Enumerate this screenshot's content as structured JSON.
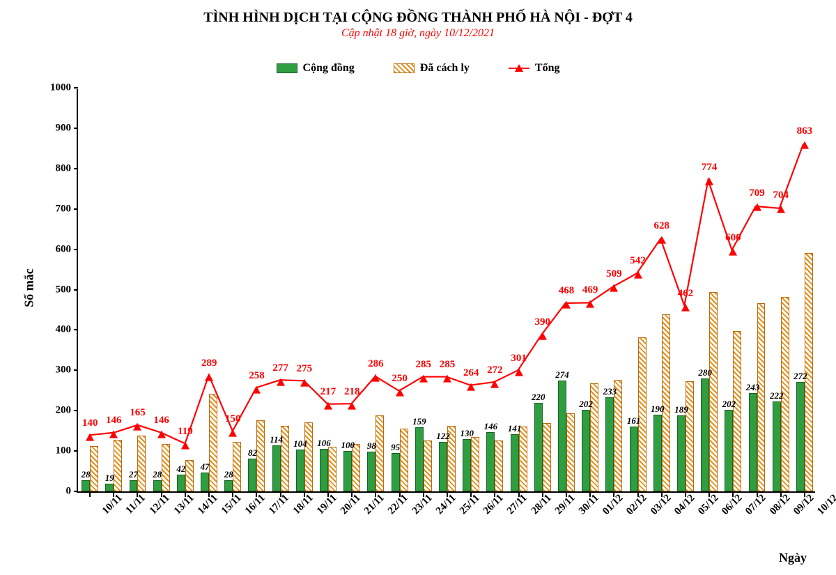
{
  "title": "TÌNH HÌNH DỊCH TẠI CỘNG ĐỒNG THÀNH PHỐ HÀ NỘI - ĐỢT 4",
  "subtitle": "Cập nhật 18 giờ, ngày 10/12/2021",
  "title_fontsize": 20,
  "subtitle_fontsize": 16,
  "legend": {
    "fontsize": 16,
    "items": [
      {
        "name": "cong-dong",
        "label": "Cộng đồng",
        "type": "bar-solid",
        "color": "#2e9e41",
        "border": "#1c5f27"
      },
      {
        "name": "cach-ly",
        "label": "Đã cách ly",
        "type": "bar-hatched",
        "color": "#e58e1a",
        "border": "#b86b0e",
        "hatch_background": "#ffffff"
      },
      {
        "name": "tong",
        "label": "Tổng",
        "type": "line-triangle",
        "color": "#ff0000"
      }
    ]
  },
  "axes": {
    "y_label": "Số mắc",
    "x_label": "Ngày",
    "label_fontsize": 18,
    "tick_fontsize": 15,
    "ylim": [
      0,
      1000
    ],
    "ytick_step": 100
  },
  "style": {
    "background_color": "#ffffff",
    "bar_group_width_ratio": 0.7,
    "bar_data_label_fontsize": 13,
    "bar_data_label_color": "#000000",
    "line_width": 2.2,
    "line_label_fontsize": 15,
    "line_label_color": "#ff0000",
    "marker_size": 11
  },
  "data": {
    "categories": [
      "10/11",
      "11/11",
      "12/11",
      "13/11",
      "14/11",
      "15/11",
      "16/11",
      "17/11",
      "18/11",
      "19/11",
      "20/11",
      "21/11",
      "22/11",
      "23/11",
      "24/11",
      "25/11",
      "26/11",
      "27/11",
      "28/11",
      "29/11",
      "30/11",
      "01/12",
      "02/12",
      "03/12",
      "04/12",
      "05/12",
      "06/12",
      "07/12",
      "08/12",
      "09/12",
      "10/12"
    ],
    "cong_dong": [
      28,
      19,
      27,
      28,
      42,
      47,
      28,
      82,
      114,
      104,
      106,
      100,
      98,
      95,
      159,
      122,
      130,
      146,
      141,
      220,
      274,
      202,
      233,
      161,
      190,
      189,
      280,
      202,
      243,
      222,
      272
    ],
    "da_cach_ly": [
      112,
      127,
      138,
      118,
      77,
      242,
      122,
      176,
      163,
      171,
      111,
      118,
      188,
      155,
      126,
      163,
      134,
      126,
      160,
      170,
      194,
      267,
      276,
      381,
      438,
      273,
      494,
      398,
      466,
      482,
      591
    ],
    "tong": [
      140,
      146,
      165,
      146,
      119,
      289,
      150,
      258,
      277,
      275,
      217,
      218,
      286,
      250,
      285,
      285,
      264,
      272,
      301,
      390,
      468,
      469,
      509,
      542,
      628,
      462,
      774,
      600,
      709,
      704,
      863
    ]
  }
}
